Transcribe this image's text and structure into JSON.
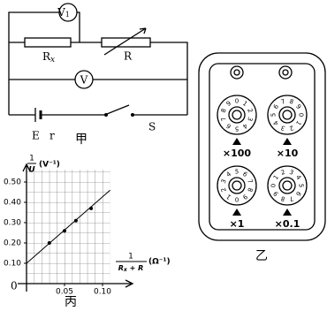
{
  "circuit": {
    "v1": {
      "main": "V",
      "sub": "1"
    },
    "rx": {
      "main": "R",
      "sub": "x"
    },
    "r_label": "R",
    "v": "V",
    "e": "E",
    "r": "r",
    "s": "S",
    "caption": "甲"
  },
  "resistance_box": {
    "dials": [
      {
        "label": "×100"
      },
      {
        "label": "×10"
      },
      {
        "label": "×1"
      },
      {
        "label": "×0.1"
      }
    ],
    "digits": [
      0,
      1,
      2,
      3,
      4,
      5,
      6,
      7,
      8,
      9
    ],
    "caption": "乙"
  },
  "chart_data": {
    "type": "scatter",
    "y_label": {
      "num": "1",
      "den": "U",
      "unit": "(V⁻¹)"
    },
    "x_label": {
      "num": "1",
      "den_main": "R",
      "den_sub": "x",
      "den_rest": " + R",
      "unit": "(Ω⁻¹)"
    },
    "origin_label": "0",
    "xlim": [
      0,
      0.11
    ],
    "ylim": [
      0,
      0.56
    ],
    "xticks": [
      0.05,
      {
        "value": 0.1,
        "label": "0.10"
      }
    ],
    "yticks": [
      {
        "value": 0.1,
        "label": "0.10"
      },
      {
        "value": 0.2,
        "label": "0.20"
      },
      {
        "value": 0.3,
        "label": "0.30"
      },
      {
        "value": 0.4,
        "label": "0.40"
      },
      {
        "value": 0.5,
        "label": "0.50"
      }
    ],
    "x": [
      0.03,
      0.05,
      0.065,
      0.085
    ],
    "y": [
      0.2,
      0.26,
      0.31,
      0.37
    ],
    "fit_line": {
      "x": [
        0,
        0.11
      ],
      "y": [
        0.1,
        0.46
      ]
    },
    "caption": "丙"
  }
}
